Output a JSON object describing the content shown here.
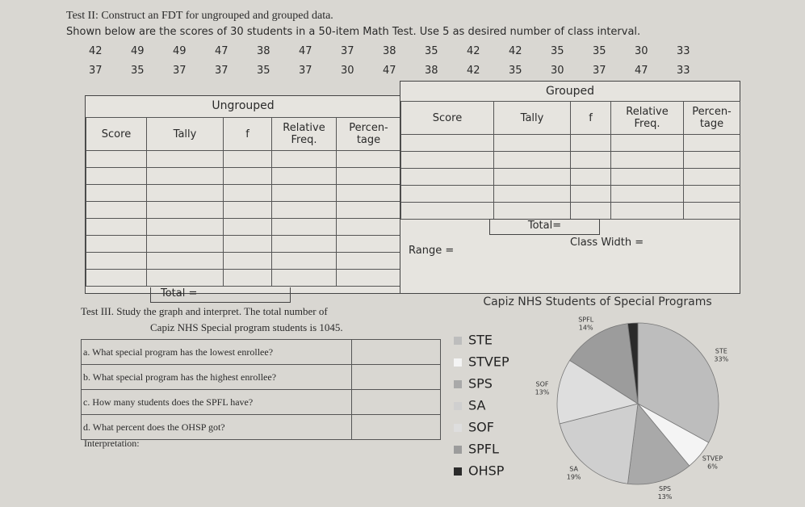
{
  "test2": {
    "title": "Test II: Construct an FDT for ungrouped and grouped data.",
    "instruction": "Shown below are the scores of 30 students in a 50-item Math Test. Use 5 as desired number of class interval.",
    "scores": [
      [
        42,
        49,
        49,
        47,
        38,
        47,
        37,
        38,
        35,
        42,
        42,
        35,
        35,
        30,
        33
      ],
      [
        37,
        35,
        37,
        37,
        35,
        37,
        30,
        47,
        38,
        42,
        35,
        30,
        37,
        47,
        33
      ]
    ]
  },
  "ungrouped": {
    "title": "Ungrouped",
    "columns": [
      "Score",
      "Tally",
      "f",
      "Relative Freq.",
      "Percen- tage"
    ],
    "total": "Total ="
  },
  "grouped": {
    "title": "Grouped",
    "columns": [
      "Score",
      "Tally",
      "f",
      "Relative Freq.",
      "Percen- tage"
    ],
    "total": "Total=",
    "range": "Range =",
    "class_width": "Class Width ="
  },
  "test3": {
    "instruction": "Test III. Study the graph and interpret. The total number of",
    "instruction_cont": "Capiz NHS Special program students is 1045.",
    "questions": [
      "a. What special program has the lowest enrollee?",
      "b. What special program has the highest enrollee?",
      "c. How many students does the SPFL have?",
      "d. What percent does the OHSP got?"
    ],
    "interpretation": "Interpretation:"
  },
  "chart_data": {
    "type": "pie",
    "title": "Capiz NHS Students of Special Programs",
    "categories": [
      "STE",
      "STVEP",
      "SPS",
      "SA",
      "SOF",
      "SPFL",
      "OHSP"
    ],
    "values": [
      33,
      6,
      13,
      19,
      13,
      14,
      2
    ],
    "value_labels": [
      "33%",
      "6%",
      "13%",
      "19%",
      "13%",
      "14%",
      null
    ],
    "colors": [
      "#bdbdbd",
      "#f4f4f4",
      "#a9a9a9",
      "#cfcfcf",
      "#dedede",
      "#9c9c9c",
      "#2b2b2b"
    ]
  }
}
